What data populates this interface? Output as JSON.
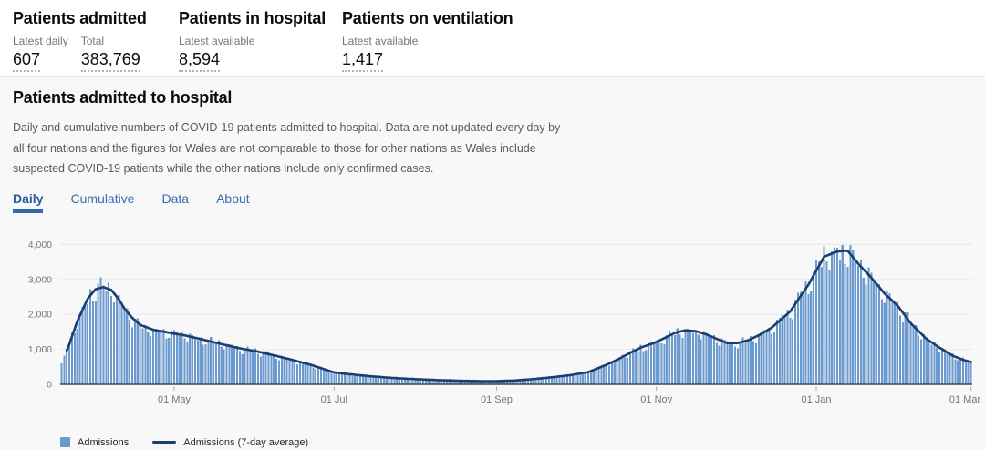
{
  "header": {
    "cards": [
      {
        "title": "Patients admitted",
        "metrics": [
          {
            "label": "Latest daily",
            "value": "607"
          },
          {
            "label": "Total",
            "value": "383,769"
          }
        ]
      },
      {
        "title": "Patients in hospital",
        "metrics": [
          {
            "label": "Latest available",
            "value": "8,594"
          }
        ]
      },
      {
        "title": "Patients on ventilation",
        "metrics": [
          {
            "label": "Latest available",
            "value": "1,417"
          }
        ]
      }
    ]
  },
  "section": {
    "title": "Patients admitted to hospital",
    "description": "Daily and cumulative numbers of COVID-19 patients admitted to hospital. Data are not updated every day by\nall four nations and the figures for Wales are not comparable to those for other nations as Wales include\nsuspected COVID-19 patients while the other nations include only confirmed cases.",
    "tabs": [
      {
        "label": "Daily",
        "active": true
      },
      {
        "label": "Cumulative",
        "active": false
      },
      {
        "label": "Data",
        "active": false
      },
      {
        "label": "About",
        "active": false
      }
    ]
  },
  "chart_data": {
    "type": "bar+line",
    "series": [
      {
        "name": "Admissions",
        "type": "bar",
        "color": "#6b9ad1"
      },
      {
        "name": "Admissions (7-day average)",
        "type": "line",
        "color": "#1d3d6e"
      }
    ],
    "x_axis": {
      "tick_labels": [
        "01 May",
        "01 Jul",
        "01 Sep",
        "01 Nov",
        "01 Jan",
        "01 Mar"
      ],
      "tick_days": [
        43,
        104,
        166,
        227,
        288,
        347
      ]
    },
    "y_axis": {
      "tick_labels": [
        "0",
        "1,000",
        "2,000",
        "3,000",
        "4,000"
      ],
      "tick_values": [
        0,
        1000,
        2000,
        3000,
        4000
      ],
      "ylim": [
        0,
        4400
      ]
    },
    "days_total": 348,
    "latest_daily_value": 607,
    "avg_anchors": [
      [
        0,
        600
      ],
      [
        3,
        1150
      ],
      [
        6,
        1800
      ],
      [
        10,
        2450
      ],
      [
        13,
        2720
      ],
      [
        16,
        2780
      ],
      [
        19,
        2700
      ],
      [
        22,
        2420
      ],
      [
        24,
        2170
      ],
      [
        27,
        1900
      ],
      [
        30,
        1700
      ],
      [
        35,
        1560
      ],
      [
        43,
        1450
      ],
      [
        47,
        1400
      ],
      [
        54,
        1280
      ],
      [
        61,
        1150
      ],
      [
        68,
        1030
      ],
      [
        74,
        950
      ],
      [
        81,
        830
      ],
      [
        88,
        700
      ],
      [
        95,
        560
      ],
      [
        104,
        340
      ],
      [
        111,
        280
      ],
      [
        118,
        230
      ],
      [
        125,
        190
      ],
      [
        132,
        160
      ],
      [
        139,
        135
      ],
      [
        146,
        115
      ],
      [
        153,
        100
      ],
      [
        160,
        92
      ],
      [
        166,
        90
      ],
      [
        173,
        110
      ],
      [
        180,
        150
      ],
      [
        187,
        200
      ],
      [
        194,
        260
      ],
      [
        201,
        350
      ],
      [
        208,
        560
      ],
      [
        212,
        700
      ],
      [
        217,
        900
      ],
      [
        221,
        1050
      ],
      [
        226,
        1180
      ],
      [
        230,
        1320
      ],
      [
        234,
        1470
      ],
      [
        238,
        1545
      ],
      [
        242,
        1520
      ],
      [
        246,
        1430
      ],
      [
        250,
        1300
      ],
      [
        254,
        1180
      ],
      [
        258,
        1180
      ],
      [
        262,
        1260
      ],
      [
        266,
        1400
      ],
      [
        271,
        1620
      ],
      [
        278,
        2080
      ],
      [
        285,
        2850
      ],
      [
        291,
        3650
      ],
      [
        296,
        3800
      ],
      [
        300,
        3820
      ],
      [
        304,
        3450
      ],
      [
        309,
        3050
      ],
      [
        314,
        2600
      ],
      [
        319,
        2250
      ],
      [
        324,
        1750
      ],
      [
        330,
        1300
      ],
      [
        335,
        1050
      ],
      [
        340,
        820
      ],
      [
        344,
        700
      ],
      [
        347,
        640
      ]
    ],
    "weekday_factors": [
      1.03,
      1.07,
      1.02,
      0.97,
      1.05,
      0.92,
      0.88
    ],
    "grid": true,
    "legend_position": "bottom-left"
  },
  "legend": {
    "items": [
      {
        "label": "Admissions"
      },
      {
        "label": "Admissions (7-day average)"
      }
    ]
  },
  "colors": {
    "bar": "#6b9ad1",
    "line": "#1d3d6e",
    "card_bg": "#f8f8f8",
    "grid": "#e8e9eb",
    "axis": "#3f4a50",
    "tick_text": "#6f777b",
    "tab_blue": "#3a6bac"
  }
}
